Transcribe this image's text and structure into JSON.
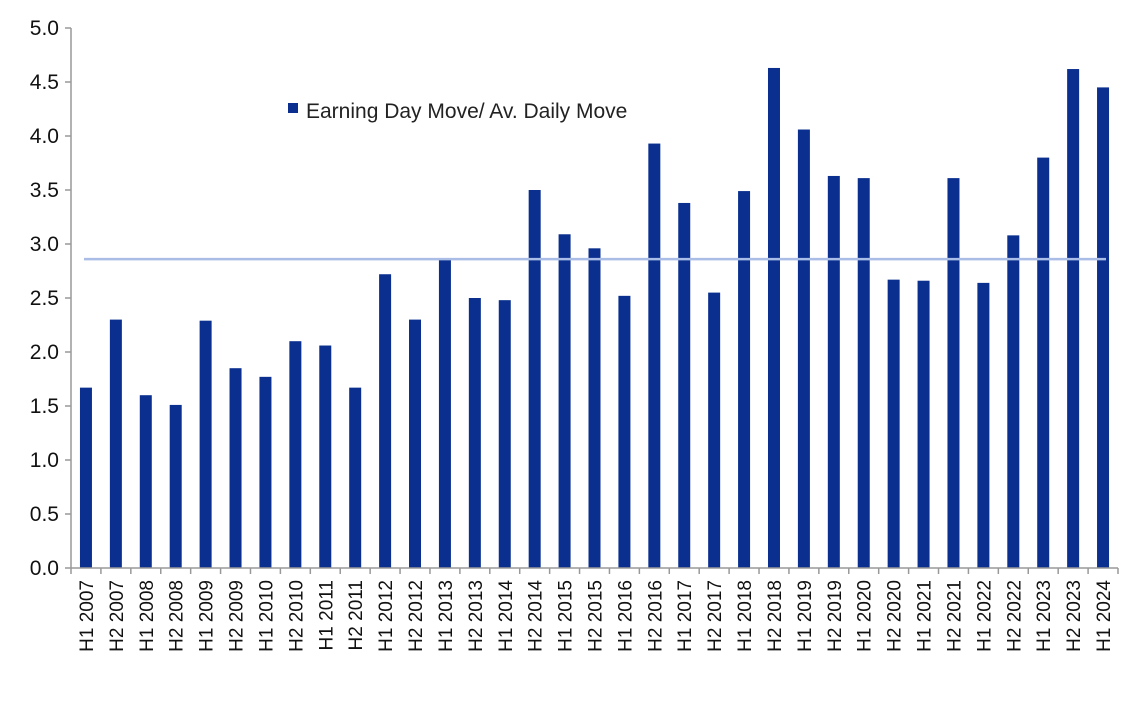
{
  "chart_data": {
    "type": "bar",
    "title": "",
    "xlabel": "",
    "ylabel": "",
    "ylim": [
      0,
      5.0
    ],
    "yticks": [
      "0.0",
      "0.5",
      "1.0",
      "1.5",
      "2.0",
      "2.5",
      "3.0",
      "3.5",
      "4.0",
      "4.5",
      "5.0"
    ],
    "grid": false,
    "legend_placement": "top-center",
    "categories": [
      "H1 2007",
      "H2 2007",
      "H1 2008",
      "H2 2008",
      "H1 2009",
      "H2 2009",
      "H1 2010",
      "H2 2010",
      "H1 2011",
      "H2 2011",
      "H1 2012",
      "H2 2012",
      "H1 2013",
      "H2 2013",
      "H1 2014",
      "H2 2014",
      "H1 2015",
      "H2 2015",
      "H1 2016",
      "H2 2016",
      "H1 2017",
      "H2 2017",
      "H1 2018",
      "H2 2018",
      "H1 2019",
      "H2 2019",
      "H1 2020",
      "H2 2020",
      "H1 2021",
      "H2 2021",
      "H1 2022",
      "H2 2022",
      "H1 2023",
      "H2 2023",
      "H1 2024"
    ],
    "series": [
      {
        "name": "Earning Day Move/ Av. Daily Move",
        "color": "#0a2f8f",
        "values": [
          1.67,
          2.3,
          1.6,
          1.51,
          2.29,
          1.85,
          1.77,
          2.1,
          2.06,
          1.67,
          2.72,
          2.3,
          2.86,
          2.5,
          2.48,
          3.5,
          3.09,
          2.96,
          2.52,
          3.93,
          3.38,
          2.55,
          3.49,
          4.63,
          4.06,
          3.63,
          3.61,
          2.67,
          2.66,
          3.61,
          2.64,
          3.08,
          3.8,
          4.62,
          4.45
        ]
      }
    ],
    "reference_line": {
      "value": 2.86,
      "color": "#a9bde6"
    }
  }
}
